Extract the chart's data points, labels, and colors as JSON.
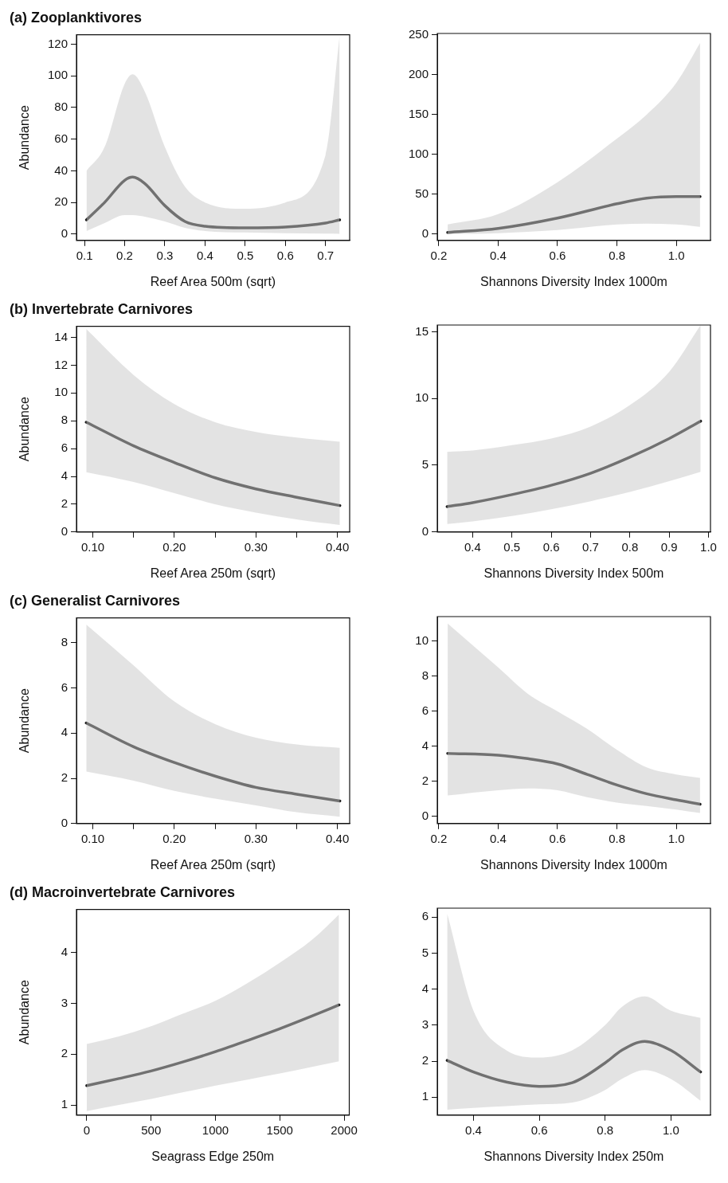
{
  "chart_data": [
    {
      "type": "line",
      "title": "(a) Zooplanktivores",
      "xlabel": "Reef Area 500m (sqrt)",
      "ylabel": "Abundance",
      "xlim": [
        0.08,
        0.76
      ],
      "ylim": [
        -4,
        126
      ],
      "xticks": [
        0.1,
        0.2,
        0.3,
        0.4,
        0.5,
        0.6,
        0.7
      ],
      "yticks": [
        0,
        20,
        40,
        60,
        80,
        100,
        120
      ],
      "series": [
        {
          "color": "#1a1a1a",
          "x": [
            0.105,
            0.15,
            0.2,
            0.22,
            0.25,
            0.3,
            0.35,
            0.4,
            0.5,
            0.6,
            0.7,
            0.735
          ],
          "values": [
            9,
            20,
            34,
            36,
            32,
            18,
            8,
            5,
            4,
            4.5,
            7,
            9
          ],
          "lower": [
            2,
            7,
            12,
            12,
            11,
            8,
            4,
            2,
            1,
            0.5,
            0.3,
            0.2
          ],
          "upper": [
            40,
            55,
            95,
            101,
            90,
            55,
            30,
            20,
            16,
            20,
            50,
            125
          ]
        }
      ]
    },
    {
      "type": "line",
      "xlabel": "Shannons Diversity Index 1000m",
      "xlim": [
        0.195,
        1.115
      ],
      "ylim": [
        -8,
        252
      ],
      "xticks": [
        0.2,
        0.4,
        0.6,
        0.8,
        {
          "value": 1,
          "label": "1.0"
        }
      ],
      "yticks": [
        0,
        50,
        100,
        150,
        200,
        250
      ],
      "series": [
        {
          "color": "#1a1a1a",
          "x": [
            0.23,
            0.4,
            0.6,
            0.8,
            0.9,
            1.0,
            1.08
          ],
          "values": [
            2,
            7,
            20,
            38,
            45,
            47,
            47
          ],
          "lower": [
            0,
            1,
            5,
            12,
            13,
            12,
            9
          ],
          "upper": [
            12,
            25,
            65,
            120,
            150,
            190,
            240
          ]
        }
      ]
    },
    {
      "type": "line",
      "title": "(b) Invertebrate Carnivores",
      "xlabel": "Reef Area 250m (sqrt)",
      "ylabel": "Abundance",
      "xlim": [
        0.08,
        0.415
      ],
      "ylim": [
        0,
        14.8
      ],
      "xticks": [
        {
          "value": 0.1,
          "label": "0.10"
        },
        {
          "value": 0.15,
          "label": null
        },
        {
          "value": 0.2,
          "label": "0.20"
        },
        {
          "value": 0.25,
          "label": null
        },
        {
          "value": 0.3,
          "label": "0.30"
        },
        {
          "value": 0.35,
          "label": null
        },
        {
          "value": 0.4,
          "label": "0.40"
        }
      ],
      "yticks": [
        0,
        2,
        4,
        6,
        8,
        10,
        12,
        14
      ],
      "series": [
        {
          "color": "#1a1a1a",
          "x": [
            0.092,
            0.15,
            0.2,
            0.25,
            0.3,
            0.35,
            0.403
          ],
          "values": [
            7.9,
            6.2,
            5.0,
            3.9,
            3.1,
            2.5,
            1.9
          ],
          "lower": [
            4.3,
            3.6,
            2.8,
            2.0,
            1.4,
            0.9,
            0.5
          ],
          "upper": [
            14.6,
            11.3,
            9.2,
            7.9,
            7.2,
            6.8,
            6.5
          ]
        }
      ]
    },
    {
      "type": "line",
      "xlabel": "Shannons Diversity Index 500m",
      "xlim": [
        0.31,
        1.005
      ],
      "ylim": [
        0,
        15.5
      ],
      "xticks": [
        0.4,
        0.5,
        0.6,
        0.7,
        0.8,
        0.9,
        {
          "value": 1,
          "label": "1.0"
        }
      ],
      "yticks": [
        0,
        5,
        10,
        15
      ],
      "series": [
        {
          "color": "#1a1a1a",
          "x": [
            0.335,
            0.4,
            0.5,
            0.6,
            0.7,
            0.8,
            0.9,
            0.98
          ],
          "values": [
            1.9,
            2.2,
            2.8,
            3.5,
            4.4,
            5.6,
            7.0,
            8.3
          ],
          "lower": [
            0.6,
            0.8,
            1.2,
            1.7,
            2.3,
            3.0,
            3.8,
            4.5
          ],
          "upper": [
            6.0,
            6.1,
            6.5,
            7.0,
            7.9,
            9.5,
            12.0,
            15.5
          ]
        }
      ]
    },
    {
      "type": "line",
      "title": "(c) Generalist Carnivores",
      "xlabel": "Reef Area 250m (sqrt)",
      "ylabel": "Abundance",
      "xlim": [
        0.08,
        0.415
      ],
      "ylim": [
        0,
        9.1
      ],
      "xticks": [
        {
          "value": 0.1,
          "label": "0.10"
        },
        {
          "value": 0.15,
          "label": null
        },
        {
          "value": 0.2,
          "label": "0.20"
        },
        {
          "value": 0.25,
          "label": null
        },
        {
          "value": 0.3,
          "label": "0.30"
        },
        {
          "value": 0.35,
          "label": null
        },
        {
          "value": 0.4,
          "label": "0.40"
        }
      ],
      "yticks": [
        0,
        2,
        4,
        6,
        8
      ],
      "series": [
        {
          "color": "#1a1a1a",
          "x": [
            0.092,
            0.15,
            0.2,
            0.25,
            0.3,
            0.35,
            0.403
          ],
          "values": [
            4.45,
            3.4,
            2.7,
            2.1,
            1.6,
            1.3,
            1.0
          ],
          "lower": [
            2.3,
            1.9,
            1.45,
            1.1,
            0.8,
            0.5,
            0.3
          ],
          "upper": [
            8.8,
            7.0,
            5.4,
            4.4,
            3.8,
            3.5,
            3.35
          ]
        }
      ]
    },
    {
      "type": "line",
      "xlabel": "Shannons Diversity Index 1000m",
      "xlim": [
        0.195,
        1.115
      ],
      "ylim": [
        -0.4,
        11.4
      ],
      "xticks": [
        0.2,
        0.4,
        0.6,
        0.8,
        {
          "value": 1,
          "label": "1.0"
        }
      ],
      "yticks": [
        0,
        2,
        4,
        6,
        8,
        10
      ],
      "series": [
        {
          "color": "#1a1a1a",
          "x": [
            0.23,
            0.4,
            0.5,
            0.6,
            0.7,
            0.8,
            0.9,
            1.0,
            1.08
          ],
          "values": [
            3.6,
            3.5,
            3.3,
            3.0,
            2.4,
            1.8,
            1.3,
            0.95,
            0.7
          ],
          "lower": [
            1.2,
            1.5,
            1.6,
            1.5,
            1.1,
            0.8,
            0.6,
            0.4,
            0.2
          ],
          "upper": [
            11,
            8.5,
            7.0,
            6.0,
            5.0,
            3.8,
            2.8,
            2.4,
            2.2
          ]
        }
      ]
    },
    {
      "type": "line",
      "title": "(d) Macroinvertebrate Carnivores",
      "xlabel": "Seagrass Edge 250m",
      "ylabel": "Abundance",
      "xlim": [
        -80,
        2040
      ],
      "ylim": [
        0.8,
        4.85
      ],
      "xticks": [
        0,
        500,
        1000,
        1500,
        2000
      ],
      "yticks": [
        1,
        2,
        3,
        4
      ],
      "series": [
        {
          "color": "#1a1a1a",
          "x": [
            0,
            250,
            500,
            750,
            1000,
            1250,
            1500,
            1750,
            1960
          ],
          "values": [
            1.38,
            1.52,
            1.67,
            1.85,
            2.05,
            2.27,
            2.5,
            2.75,
            2.97
          ],
          "lower": [
            0.88,
            1.0,
            1.12,
            1.25,
            1.38,
            1.5,
            1.62,
            1.75,
            1.86
          ],
          "upper": [
            2.2,
            2.35,
            2.55,
            2.8,
            3.05,
            3.4,
            3.8,
            4.25,
            4.75
          ]
        }
      ]
    },
    {
      "type": "line",
      "xlabel": "Shannons Diversity Index 250m",
      "xlim": [
        0.29,
        1.12
      ],
      "ylim": [
        0.5,
        6.25
      ],
      "xticks": [
        0.4,
        0.6,
        0.8,
        {
          "value": 1,
          "label": "1.0"
        }
      ],
      "yticks": [
        1,
        2,
        3,
        4,
        5,
        6
      ],
      "series": [
        {
          "color": "#1a1a1a",
          "x": [
            0.32,
            0.4,
            0.5,
            0.6,
            0.7,
            0.8,
            0.85,
            0.92,
            1.0,
            1.09
          ],
          "values": [
            2.02,
            1.7,
            1.42,
            1.3,
            1.4,
            1.95,
            2.3,
            2.55,
            2.3,
            1.7
          ],
          "lower": [
            0.65,
            0.7,
            0.75,
            0.8,
            0.85,
            1.2,
            1.5,
            1.75,
            1.5,
            0.9
          ],
          "upper": [
            6.1,
            3.4,
            2.3,
            2.1,
            2.3,
            3.0,
            3.5,
            3.8,
            3.4,
            3.2
          ]
        }
      ]
    }
  ]
}
